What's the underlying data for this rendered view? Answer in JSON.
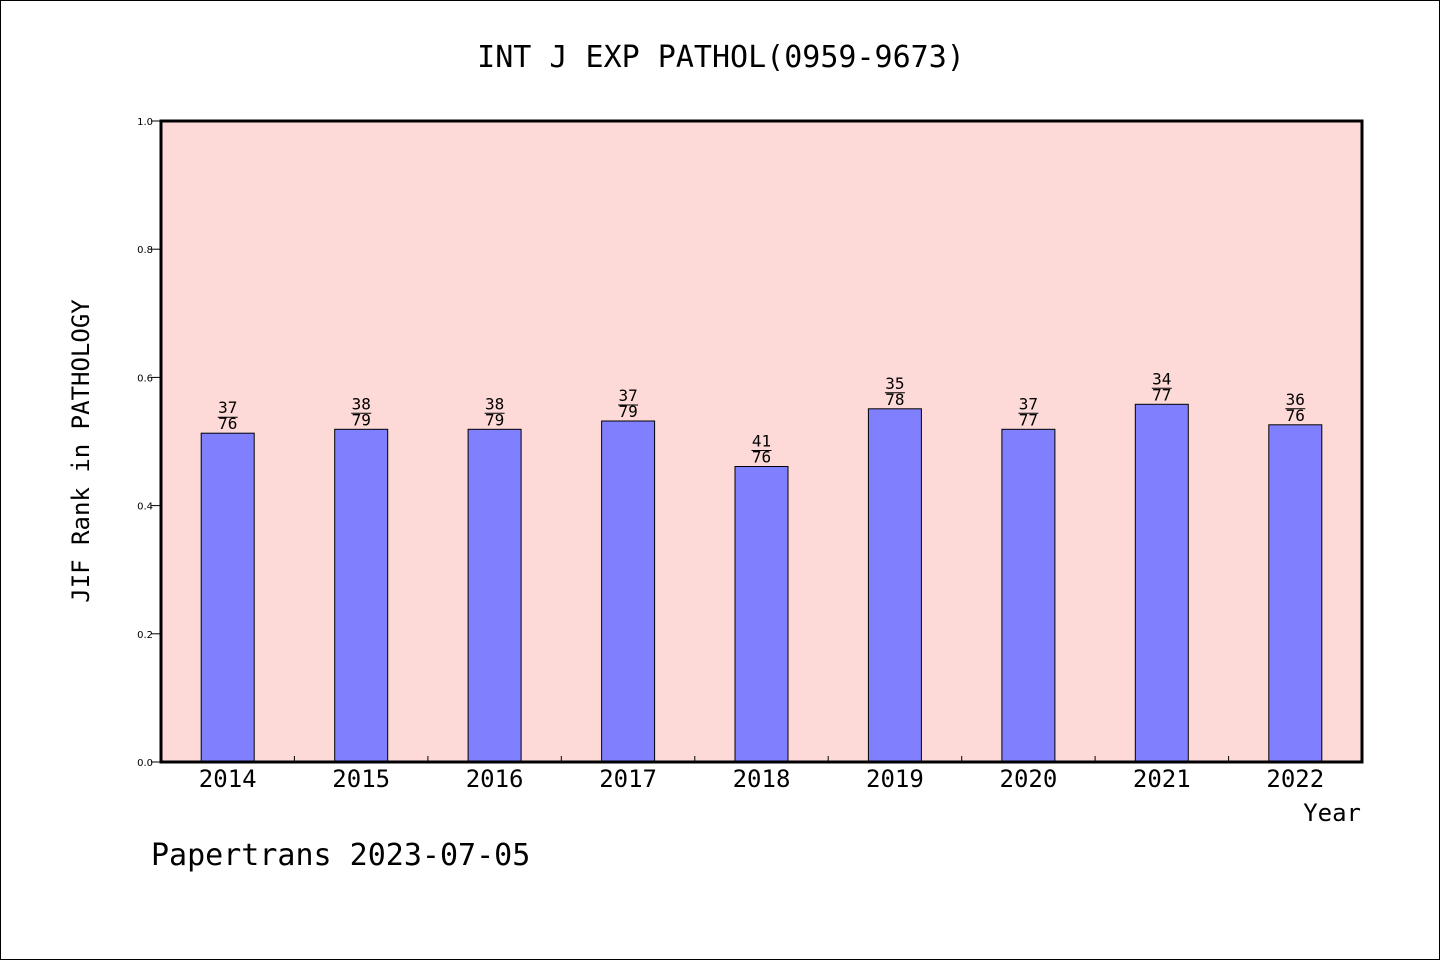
{
  "footer": "Papertrans 2023-07-05",
  "chart_data": {
    "type": "bar",
    "title": "INT J EXP PATHOL(0959-9673)",
    "xlabel": "Year",
    "ylabel": "JIF Rank in PATHOLOGY",
    "ylim": [
      0.0,
      1.0
    ],
    "yticks": [
      "0.0",
      "0.2",
      "0.4",
      "0.6",
      "0.8",
      "1.0"
    ],
    "grid": false,
    "categories": [
      "2014",
      "2015",
      "2016",
      "2017",
      "2018",
      "2019",
      "2020",
      "2021",
      "2022"
    ],
    "values": [
      0.513,
      0.519,
      0.519,
      0.532,
      0.461,
      0.551,
      0.519,
      0.558,
      0.526
    ],
    "rank": [
      "37",
      "38",
      "38",
      "37",
      "41",
      "35",
      "37",
      "34",
      "36"
    ],
    "total": [
      "76",
      "79",
      "79",
      "79",
      "76",
      "78",
      "77",
      "77",
      "76"
    ],
    "colors": {
      "plot_background": "#fddad8",
      "bar_fill": "#8080ff",
      "bar_stroke": "#000000",
      "axis": "#000000"
    }
  }
}
